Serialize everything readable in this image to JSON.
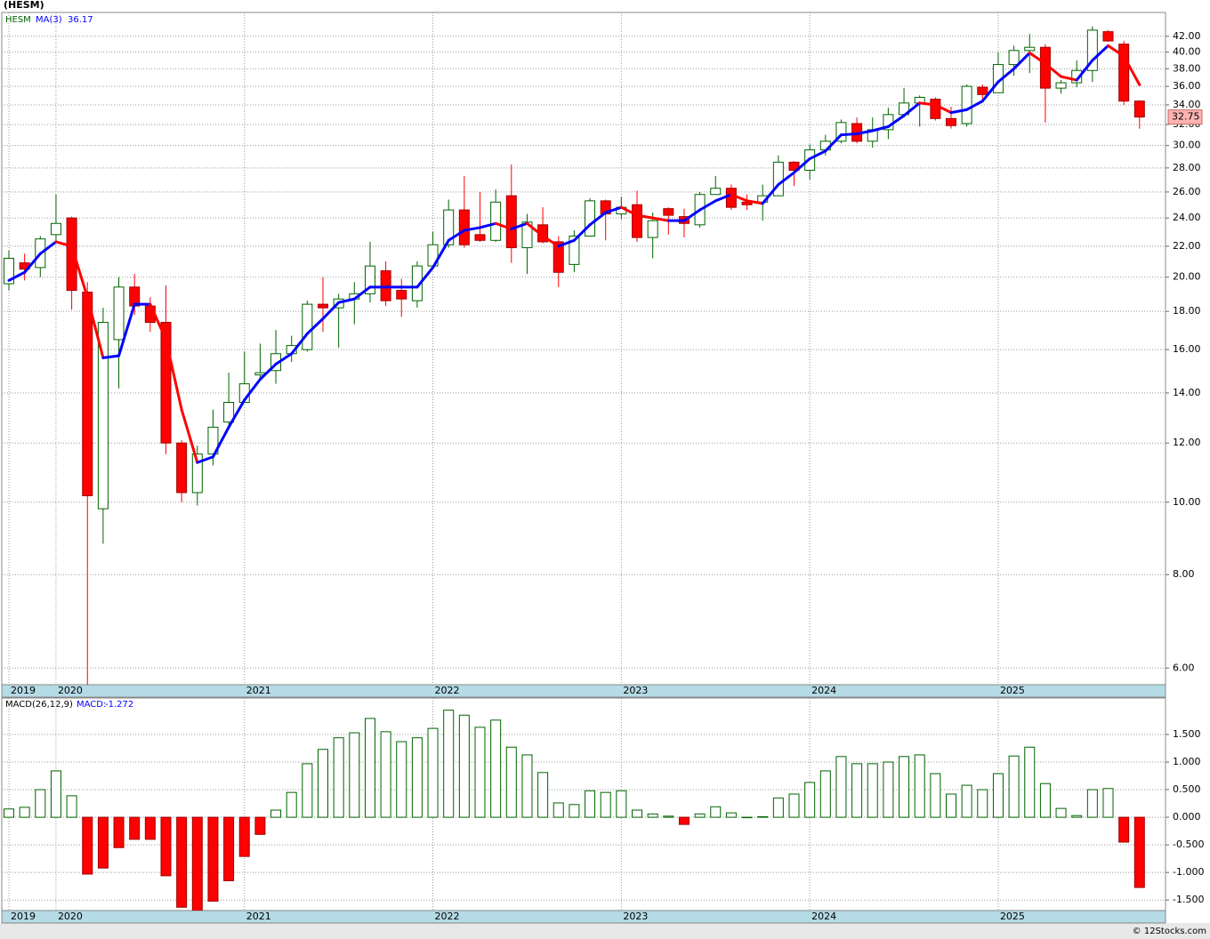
{
  "chart_data": [
    {
      "type": "candlestick",
      "title": "(HESM)",
      "symbol": "HESM",
      "categories": [
        "2019",
        null,
        null,
        "2020",
        null,
        null,
        null,
        null,
        null,
        null,
        null,
        null,
        null,
        null,
        null,
        "2021",
        null,
        null,
        null,
        null,
        null,
        null,
        null,
        null,
        null,
        null,
        null,
        "2022",
        null,
        null,
        null,
        null,
        null,
        null,
        null,
        null,
        null,
        null,
        null,
        "2023",
        null,
        null,
        null,
        null,
        null,
        null,
        null,
        null,
        null,
        null,
        null,
        "2024",
        null,
        null,
        null,
        null,
        null,
        null,
        null,
        null,
        null,
        null,
        null,
        "2025",
        null,
        null,
        null,
        null,
        null,
        null,
        null,
        null,
        null
      ],
      "open": [
        19.6,
        20.9,
        20.6,
        22.8,
        24.0,
        19.1,
        9.8,
        16.5,
        19.4,
        18.3,
        17.4,
        12.0,
        10.3,
        11.6,
        12.8,
        13.6,
        14.8,
        15.0,
        15.8,
        16.0,
        18.4,
        18.2,
        18.7,
        19.0,
        20.4,
        19.2,
        18.6,
        20.7,
        22.1,
        24.6,
        22.8,
        22.4,
        25.7,
        21.9,
        23.5,
        22.3,
        20.8,
        22.7,
        25.3,
        24.3,
        25.0,
        22.6,
        24.7,
        24.1,
        23.5,
        25.8,
        26.3,
        25.2,
        25.2,
        25.7,
        28.5,
        27.8,
        29.6,
        30.4,
        32.1,
        30.4,
        31.5,
        33.0,
        34.2,
        34.6,
        32.6,
        32.1,
        35.9,
        35.3,
        38.5,
        40.2,
        40.6,
        35.8,
        36.4,
        37.8,
        42.6,
        41.0,
        34.4
      ],
      "high": [
        21.7,
        21.5,
        22.7,
        25.8,
        24.1,
        19.7,
        18.2,
        20.0,
        20.2,
        18.8,
        19.5,
        12.1,
        11.9,
        13.3,
        14.9,
        15.9,
        16.3,
        17.0,
        16.7,
        18.6,
        20.0,
        19.0,
        19.7,
        22.3,
        21.0,
        19.9,
        21.0,
        23.0,
        25.4,
        27.3,
        26.0,
        26.2,
        28.3,
        24.3,
        24.8,
        22.7,
        23.1,
        25.5,
        25.4,
        25.6,
        26.1,
        24.4,
        24.8,
        24.7,
        26.0,
        27.3,
        26.6,
        25.8,
        26.6,
        29.1,
        28.6,
        30.1,
        31.0,
        32.5,
        32.7,
        32.7,
        33.7,
        35.8,
        35.0,
        34.8,
        33.8,
        36.2,
        36.2,
        40.0,
        40.8,
        42.3,
        41.0,
        36.7,
        39.0,
        43.3,
        42.8,
        41.4,
        34.5
      ],
      "low": [
        19.2,
        19.8,
        20.0,
        22.3,
        18.1,
        5.7,
        8.8,
        14.2,
        17.8,
        16.9,
        11.6,
        10.0,
        9.9,
        11.2,
        12.7,
        13.6,
        14.6,
        14.4,
        15.4,
        15.9,
        16.9,
        16.1,
        17.3,
        18.5,
        18.3,
        17.7,
        18.2,
        20.5,
        21.9,
        21.9,
        22.3,
        22.3,
        20.9,
        20.2,
        22.2,
        19.4,
        20.3,
        22.7,
        22.4,
        23.9,
        22.3,
        21.2,
        22.8,
        22.6,
        23.3,
        25.8,
        24.6,
        24.6,
        23.8,
        25.7,
        26.5,
        27.0,
        29.1,
        30.2,
        30.2,
        29.8,
        30.6,
        32.7,
        31.8,
        32.4,
        31.6,
        31.8,
        34.4,
        35.3,
        37.2,
        37.5,
        32.2,
        35.2,
        35.9,
        36.5,
        41.3,
        34.0,
        31.6
      ],
      "close": [
        21.2,
        20.5,
        22.5,
        23.6,
        19.2,
        10.2,
        17.4,
        19.4,
        18.3,
        17.4,
        12.0,
        10.3,
        11.6,
        12.6,
        13.6,
        14.4,
        14.9,
        15.8,
        16.2,
        18.4,
        18.2,
        18.7,
        19.0,
        20.7,
        18.6,
        18.7,
        20.7,
        22.1,
        24.6,
        22.1,
        22.4,
        25.2,
        21.9,
        23.7,
        22.3,
        20.3,
        22.7,
        25.3,
        24.3,
        24.8,
        22.6,
        23.8,
        24.2,
        23.6,
        25.8,
        26.3,
        24.8,
        25.0,
        25.7,
        28.5,
        27.8,
        29.6,
        30.4,
        32.2,
        30.4,
        31.5,
        33.0,
        34.2,
        34.8,
        32.6,
        31.9,
        36.0,
        35.1,
        38.5,
        40.2,
        40.6,
        35.8,
        36.4,
        37.8,
        42.8,
        41.4,
        34.4,
        32.75
      ],
      "up_color": "#006400",
      "down_color": "#ff0000",
      "series": [
        {
          "name": "MA(3)",
          "color": "#0000ff",
          "down_color": "#ff0000",
          "values": [
            19.8,
            20.3,
            21.5,
            22.3,
            22.0,
            18.8,
            15.6,
            15.7,
            18.4,
            18.4,
            16.5,
            13.3,
            11.3,
            11.5,
            12.6,
            13.7,
            14.6,
            15.3,
            15.8,
            16.8,
            17.6,
            18.5,
            18.7,
            19.4,
            19.4,
            19.4,
            19.4,
            20.6,
            22.4,
            23.1,
            23.3,
            23.6,
            23.2,
            23.6,
            22.7,
            22.0,
            22.4,
            23.5,
            24.4,
            24.8,
            24.2,
            24.0,
            23.8,
            23.8,
            24.6,
            25.3,
            25.8,
            25.3,
            25.1,
            26.6,
            27.6,
            28.8,
            29.5,
            31.0,
            31.1,
            31.4,
            31.8,
            32.9,
            34.2,
            34.0,
            33.2,
            33.5,
            34.4,
            36.5,
            38.0,
            39.9,
            38.6,
            37.1,
            36.7,
            39.0,
            40.8,
            39.5,
            36.17
          ]
        }
      ],
      "log_scale": true,
      "grid": true,
      "ylim": [
        5.7,
        45.2
      ],
      "yticks": [
        {
          "value": 6,
          "label": "6.00"
        },
        {
          "value": 8,
          "label": "8.00"
        },
        {
          "value": 10,
          "label": "10.00"
        },
        {
          "value": 12,
          "label": "12.00"
        },
        {
          "value": 14,
          "label": "14.00"
        },
        {
          "value": 16,
          "label": "16.00"
        },
        {
          "value": 18,
          "label": "18.00"
        },
        {
          "value": 20,
          "label": "20.00"
        },
        {
          "value": 22,
          "label": "22.00"
        },
        {
          "value": 24,
          "label": "24.00"
        },
        {
          "value": 26,
          "label": "26.00"
        },
        {
          "value": 28,
          "label": "28.00"
        },
        {
          "value": 30,
          "label": "30.00"
        },
        {
          "value": 32,
          "label": "32.00"
        },
        {
          "value": 34,
          "label": "34.00"
        },
        {
          "value": 36,
          "label": "36.00"
        },
        {
          "value": 38,
          "label": "38.00"
        },
        {
          "value": 40,
          "label": "40.00"
        },
        {
          "value": 42,
          "label": "42.00"
        }
      ]
    },
    {
      "type": "bar",
      "title": "MACD(26,12,9)",
      "categories": [
        "2019",
        null,
        null,
        "2020",
        null,
        null,
        null,
        null,
        null,
        null,
        null,
        null,
        null,
        null,
        null,
        "2021",
        null,
        null,
        null,
        null,
        null,
        null,
        null,
        null,
        null,
        null,
        null,
        "2022",
        null,
        null,
        null,
        null,
        null,
        null,
        null,
        null,
        null,
        null,
        null,
        "2023",
        null,
        null,
        null,
        null,
        null,
        null,
        null,
        null,
        null,
        null,
        null,
        "2024",
        null,
        null,
        null,
        null,
        null,
        null,
        null,
        null,
        null,
        null,
        null,
        "2025",
        null,
        null,
        null,
        null,
        null,
        null,
        null,
        null,
        null
      ],
      "series": [
        {
          "name": "MACD:",
          "color": "#006400",
          "down_color": "#ff0000",
          "values": [
            0.15,
            0.18,
            0.5,
            0.84,
            0.39,
            -1.03,
            -0.92,
            -0.55,
            -0.4,
            -0.4,
            -1.06,
            -1.63,
            -1.69,
            -1.52,
            -1.15,
            -0.71,
            -0.31,
            0.13,
            0.45,
            0.97,
            1.23,
            1.44,
            1.53,
            1.79,
            1.55,
            1.37,
            1.44,
            1.61,
            1.94,
            1.85,
            1.63,
            1.76,
            1.27,
            1.13,
            0.81,
            0.26,
            0.23,
            0.48,
            0.45,
            0.48,
            0.13,
            0.06,
            0.02,
            -0.13,
            0.06,
            0.19,
            0.08,
            0.0,
            0.01,
            0.35,
            0.42,
            0.63,
            0.84,
            1.1,
            0.97,
            0.97,
            1.0,
            1.1,
            1.13,
            0.79,
            0.42,
            0.58,
            0.5,
            0.79,
            1.11,
            1.27,
            0.61,
            0.16,
            0.03,
            0.5,
            0.52,
            -0.45,
            -1.272
          ]
        }
      ],
      "grid": true,
      "ylim": [
        -1.69,
        2.16
      ],
      "yticks": [
        {
          "value": -1.5,
          "label": "-1.500"
        },
        {
          "value": -1,
          "label": "-1.000"
        },
        {
          "value": -0.5,
          "label": "-0.500"
        },
        {
          "value": 0,
          "label": "0.000"
        },
        {
          "value": 0.5,
          "label": "0.500"
        },
        {
          "value": 1,
          "label": "1.000"
        },
        {
          "value": 1.5,
          "label": "1.500"
        }
      ]
    }
  ],
  "footer": "© 12Stocks.com"
}
